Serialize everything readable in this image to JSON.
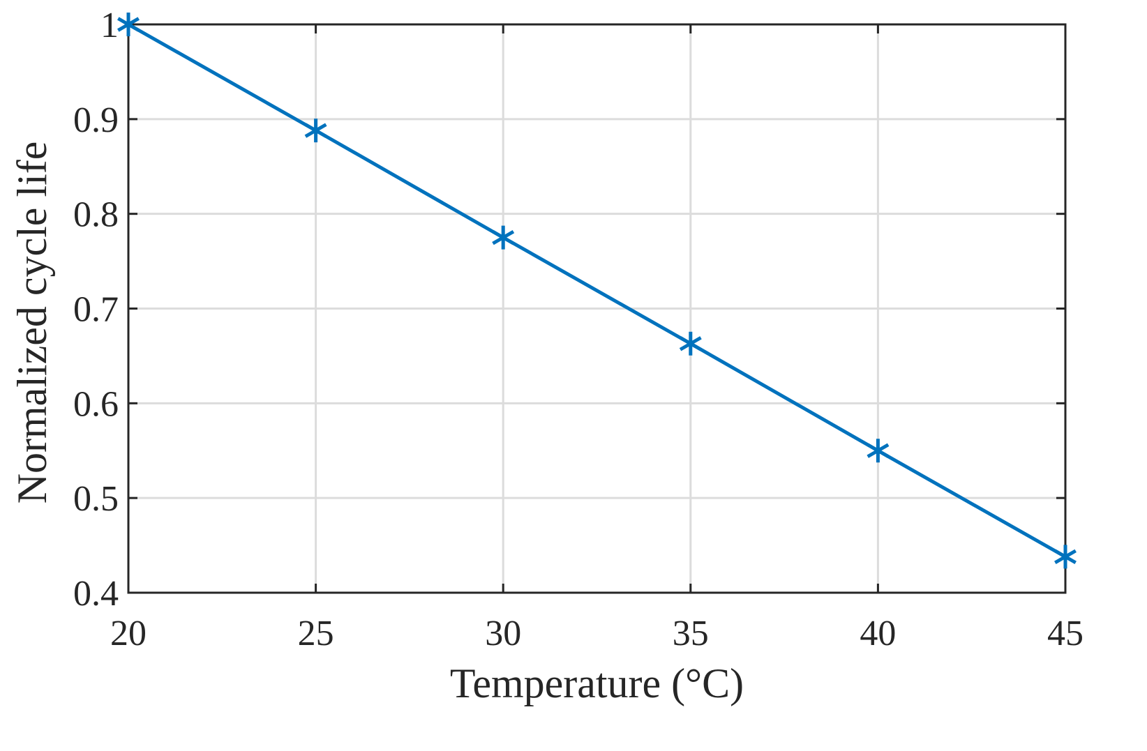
{
  "chart_data": {
    "type": "line",
    "title": "",
    "xlabel": "Temperature (°C)",
    "ylabel": "Normalized cycle life",
    "xlim": [
      20,
      45
    ],
    "ylim": [
      0.4,
      1.0
    ],
    "grid": true,
    "x_ticks": [
      "20",
      "25",
      "30",
      "35",
      "40",
      "45"
    ],
    "y_ticks": [
      "0.4",
      "0.5",
      "0.6",
      "0.7",
      "0.8",
      "0.9",
      "1"
    ],
    "series": [
      {
        "name": "Normalized cycle life",
        "color": "#0072BD",
        "marker": "asterisk",
        "x": [
          20,
          25,
          30,
          35,
          40,
          45
        ],
        "values": [
          1.0,
          0.888,
          0.775,
          0.663,
          0.55,
          0.438
        ]
      }
    ]
  }
}
